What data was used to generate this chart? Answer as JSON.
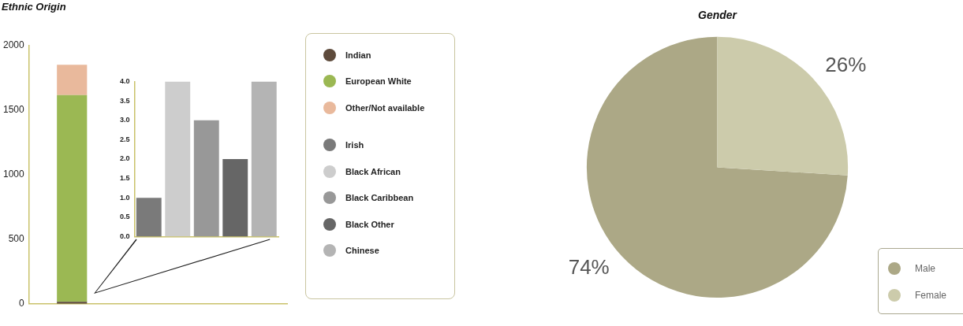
{
  "chart_data": [
    {
      "type": "bar",
      "title": "Ethnic Origin",
      "categories": [
        null,
        null,
        null
      ],
      "stacked": true,
      "ylim": [
        0,
        2000
      ],
      "yticks": [
        0,
        500,
        1000,
        1500,
        2000
      ],
      "tick_labels": "y",
      "legend": "right",
      "series": [
        {
          "name": "Indian",
          "color": "#5e4b3c",
          "values": [
            15,
            null,
            null
          ]
        },
        {
          "name": "European White",
          "color": "#9bb853",
          "values": [
            1600,
            null,
            null
          ]
        },
        {
          "name": "Other/Not available",
          "color": "#e9b99c",
          "values": [
            235,
            null,
            null
          ]
        }
      ]
    },
    {
      "type": "bar",
      "categories": [
        null,
        null,
        null,
        null,
        null
      ],
      "ylim": [
        0,
        4
      ],
      "yticks": [
        {
          "value": 0,
          "label": "0.0"
        },
        {
          "value": 0.5,
          "label": "0.5"
        },
        {
          "value": 1,
          "label": "1.0"
        },
        {
          "value": 1.5,
          "label": "1.5"
        },
        {
          "value": 2,
          "label": "2.0"
        },
        {
          "value": 2.5,
          "label": "2.5"
        },
        {
          "value": 3,
          "label": "3.0"
        },
        {
          "value": 3.5,
          "label": "3.5"
        },
        {
          "value": 4,
          "label": "4.0"
        }
      ],
      "tick_labels": "y",
      "legend": "right",
      "series": [
        {
          "name": "Irish",
          "color": "#7a7a7a",
          "values": [
            1,
            null,
            null,
            null,
            null
          ]
        },
        {
          "name": "Black African",
          "color": "#cdcdcd",
          "values": [
            null,
            4,
            null,
            null,
            null
          ]
        },
        {
          "name": "Black Caribbean",
          "color": "#989898",
          "values": [
            null,
            null,
            3,
            null,
            null
          ]
        },
        {
          "name": "Black Other",
          "color": "#666666",
          "values": [
            null,
            null,
            null,
            2,
            null
          ]
        },
        {
          "name": "Chinese",
          "color": "#b4b4b4",
          "values": [
            null,
            null,
            null,
            null,
            4
          ]
        }
      ]
    },
    {
      "type": "pie",
      "title": "Gender",
      "categories": [
        "Male",
        "Female"
      ],
      "values": [
        74,
        26
      ],
      "colors": [
        "#aca886",
        "#cccbab"
      ],
      "value_labels": [
        "74%",
        "26%"
      ],
      "legend": "bottom right"
    }
  ]
}
